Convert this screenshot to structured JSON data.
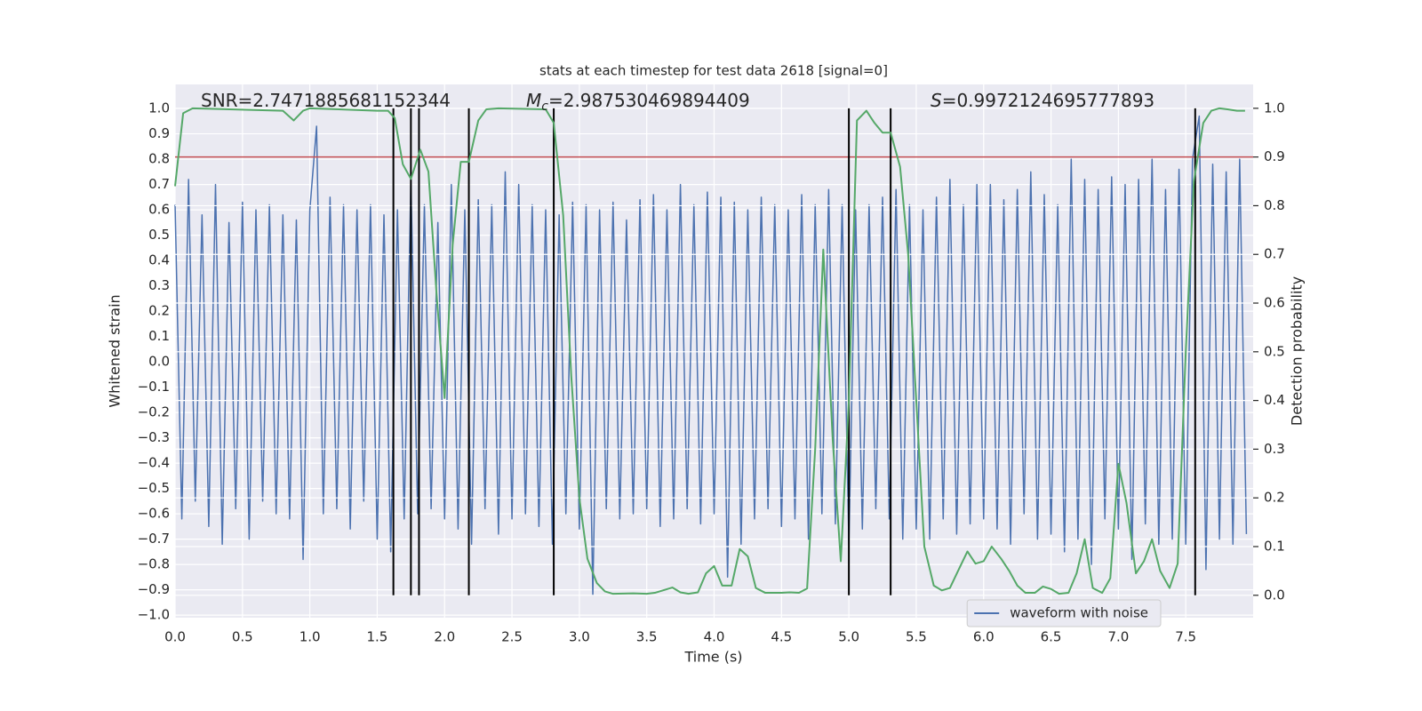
{
  "chart_data": {
    "type": "line",
    "title": "stats at each timestep for test data 2618 [signal=0]",
    "xlabel": "Time (s)",
    "ylabel": "Whitened strain",
    "y2label": "Detection probability",
    "annotations": [
      {
        "text": "SNR=2.7471885681152344"
      },
      {
        "symbol": "M",
        "subscript": "c",
        "text": "=2.987530469894409"
      },
      {
        "symbol": "S",
        "text": "=0.9972124695777893"
      }
    ],
    "xlim": [
      0,
      8.0
    ],
    "ylim": [
      -1.01,
      1.095
    ],
    "y2lim": [
      -0.046,
      1.049
    ],
    "xticks": [
      {
        "value": 0,
        "label": "0.0"
      },
      0.5,
      {
        "value": 1,
        "label": "1.0"
      },
      1.5,
      {
        "value": 2,
        "label": "2.0"
      },
      2.5,
      {
        "value": 3,
        "label": "3.0"
      },
      3.5,
      {
        "value": 4,
        "label": "4.0"
      },
      4.5,
      {
        "value": 5,
        "label": "5.0"
      },
      5.5,
      {
        "value": 6,
        "label": "6.0"
      },
      6.5,
      {
        "value": 7,
        "label": "7.0"
      },
      7.5
    ],
    "yticks": [
      {
        "value": -1,
        "label": "−1.0"
      },
      {
        "value": -0.9,
        "label": "−0.9"
      },
      {
        "value": -0.8,
        "label": "−0.8"
      },
      {
        "value": -0.7,
        "label": "−0.7"
      },
      {
        "value": -0.6,
        "label": "−0.6"
      },
      {
        "value": -0.5,
        "label": "−0.5"
      },
      {
        "value": -0.4,
        "label": "−0.4"
      },
      {
        "value": -0.3,
        "label": "−0.3"
      },
      {
        "value": -0.2,
        "label": "−0.2"
      },
      {
        "value": -0.1,
        "label": "−0.1"
      },
      {
        "value": 0,
        "label": "0.0"
      },
      0.1,
      0.2,
      0.3,
      0.4,
      0.5,
      0.6,
      0.7,
      0.8,
      0.9,
      {
        "value": 1,
        "label": "1.0"
      }
    ],
    "y2ticks": [
      {
        "value": 0,
        "label": "0.0"
      },
      0.1,
      0.2,
      0.3,
      0.4,
      0.5,
      0.6,
      0.7,
      0.8,
      0.9,
      {
        "value": 1,
        "label": "1.0"
      }
    ],
    "grid": true,
    "background": "#eaeaf2",
    "legend": "lower right",
    "hline": {
      "value": 0.9,
      "axis": "y2",
      "color": "#c44e52"
    },
    "vlines": {
      "x": [
        1.62,
        1.75,
        1.81,
        2.18,
        2.81,
        5.0,
        5.31,
        7.57
      ],
      "y2range": [
        0,
        1
      ],
      "color": "#000000"
    },
    "series": [
      {
        "name": "waveform with noise",
        "color": "#4c72b0",
        "x": [
          0,
          0.05,
          0.1,
          0.15,
          0.2,
          0.25,
          0.3,
          0.35,
          0.4,
          0.45,
          0.5,
          0.55,
          0.6,
          0.65,
          0.7,
          0.75,
          0.8,
          0.85,
          0.9,
          0.95,
          1,
          1.05,
          1.1,
          1.15,
          1.2,
          1.25,
          1.3,
          1.35,
          1.4,
          1.45,
          1.5,
          1.55,
          1.6,
          1.65,
          1.7,
          1.75,
          1.8,
          1.85,
          1.9,
          1.95,
          2,
          2.05,
          2.1,
          2.15,
          2.2,
          2.25,
          2.3,
          2.35,
          2.4,
          2.45,
          2.5,
          2.55,
          2.6,
          2.65,
          2.7,
          2.75,
          2.8,
          2.85,
          2.9,
          2.95,
          3,
          3.05,
          3.1,
          3.15,
          3.2,
          3.25,
          3.3,
          3.35,
          3.4,
          3.45,
          3.5,
          3.55,
          3.6,
          3.65,
          3.7,
          3.75,
          3.8,
          3.85,
          3.9,
          3.95,
          4,
          4.05,
          4.1,
          4.15,
          4.2,
          4.25,
          4.3,
          4.35,
          4.4,
          4.45,
          4.5,
          4.55,
          4.6,
          4.65,
          4.7,
          4.75,
          4.8,
          4.85,
          4.9,
          4.95,
          5,
          5.05,
          5.1,
          5.15,
          5.2,
          5.25,
          5.3,
          5.35,
          5.4,
          5.45,
          5.5,
          5.55,
          5.6,
          5.65,
          5.7,
          5.75,
          5.8,
          5.85,
          5.9,
          5.95,
          6,
          6.05,
          6.1,
          6.15,
          6.2,
          6.25,
          6.3,
          6.35,
          6.4,
          6.45,
          6.5,
          6.55,
          6.6,
          6.65,
          6.7,
          6.75,
          6.8,
          6.85,
          6.9,
          6.95,
          7,
          7.05,
          7.1,
          7.15,
          7.2,
          7.25,
          7.3,
          7.35,
          7.4,
          7.45,
          7.5,
          7.55,
          7.6,
          7.65,
          7.7,
          7.75,
          7.8,
          7.85,
          7.9,
          7.95
        ],
        "values": [
          0.62,
          -0.62,
          0.72,
          -0.55,
          0.58,
          -0.65,
          0.7,
          -0.72,
          0.55,
          -0.58,
          0.63,
          -0.7,
          0.6,
          -0.55,
          0.62,
          -0.6,
          0.58,
          -0.62,
          0.56,
          -0.78,
          0.6,
          0.93,
          -0.6,
          0.65,
          -0.58,
          0.62,
          -0.66,
          0.6,
          -0.55,
          0.62,
          -0.7,
          0.58,
          -0.75,
          0.6,
          -0.62,
          0.72,
          -0.6,
          0.62,
          -0.58,
          0.55,
          -0.62,
          0.7,
          -0.66,
          0.6,
          -0.72,
          0.64,
          -0.58,
          0.62,
          -0.68,
          0.75,
          -0.62,
          0.7,
          -0.6,
          0.62,
          -0.65,
          0.6,
          -0.72,
          0.58,
          -0.6,
          0.63,
          -0.66,
          0.62,
          -0.92,
          0.6,
          -0.58,
          0.63,
          -0.62,
          0.56,
          -0.6,
          0.64,
          -0.58,
          0.66,
          -0.65,
          0.6,
          -0.62,
          0.7,
          -0.58,
          0.62,
          -0.64,
          0.67,
          -0.6,
          0.65,
          -0.85,
          0.63,
          -0.72,
          0.6,
          -0.62,
          0.65,
          -0.58,
          0.62,
          -0.65,
          0.6,
          -0.62,
          0.66,
          -0.7,
          0.62,
          -0.6,
          0.68,
          -0.64,
          0.62,
          -0.72,
          0.6,
          -0.66,
          0.62,
          -0.58,
          0.65,
          -0.62,
          0.68,
          -0.7,
          0.62,
          -0.66,
          0.6,
          -0.7,
          0.65,
          -0.62,
          0.72,
          -0.68,
          0.62,
          -0.64,
          0.7,
          -0.62,
          0.7,
          -0.66,
          0.64,
          -0.72,
          0.68,
          -0.6,
          0.75,
          -0.7,
          0.66,
          -0.68,
          0.62,
          -0.75,
          0.8,
          -0.7,
          0.72,
          -0.8,
          0.68,
          -0.62,
          0.73,
          -0.66,
          0.7,
          -0.78,
          0.72,
          -0.64,
          0.8,
          -0.72,
          0.68,
          -0.7,
          0.76,
          -0.72,
          0.8,
          0.97,
          -0.82,
          0.78,
          -0.7,
          0.75,
          -0.72,
          0.8,
          -0.68
        ]
      },
      {
        "color": "#55a868",
        "axis": "y2",
        "x": [
          0,
          0.06,
          0.13,
          0.8,
          0.88,
          0.95,
          1.0,
          1.5,
          1.58,
          1.63,
          1.69,
          1.75,
          1.82,
          1.88,
          1.94,
          2.0,
          2.06,
          2.12,
          2.18,
          2.25,
          2.31,
          2.4,
          2.75,
          2.81,
          2.88,
          2.94,
          3.0,
          3.06,
          3.13,
          3.19,
          3.25,
          3.4,
          3.5,
          3.56,
          3.62,
          3.69,
          3.75,
          3.81,
          3.88,
          3.94,
          4.0,
          4.06,
          4.13,
          4.19,
          4.25,
          4.31,
          4.38,
          4.5,
          4.56,
          4.63,
          4.69,
          4.75,
          4.81,
          4.88,
          4.94,
          5.0,
          5.06,
          5.13,
          5.19,
          5.25,
          5.31,
          5.38,
          5.44,
          5.5,
          5.56,
          5.63,
          5.69,
          5.75,
          5.81,
          5.88,
          5.94,
          6.0,
          6.06,
          6.13,
          6.19,
          6.25,
          6.31,
          6.38,
          6.44,
          6.5,
          6.56,
          6.63,
          6.69,
          6.75,
          6.81,
          6.88,
          6.94,
          7.0,
          7.06,
          7.13,
          7.19,
          7.25,
          7.31,
          7.38,
          7.44,
          7.5,
          7.56,
          7.63,
          7.69,
          7.75,
          7.81,
          7.88,
          7.94
        ],
        "values": [
          0.84,
          0.99,
          1.0,
          0.995,
          0.975,
          0.995,
          1.0,
          0.995,
          0.995,
          0.98,
          0.885,
          0.855,
          0.915,
          0.87,
          0.62,
          0.405,
          0.72,
          0.89,
          0.89,
          0.975,
          0.998,
          1.0,
          0.998,
          0.97,
          0.78,
          0.45,
          0.2,
          0.075,
          0.025,
          0.008,
          0.003,
          0.004,
          0.003,
          0.005,
          0.01,
          0.016,
          0.006,
          0.003,
          0.006,
          0.045,
          0.06,
          0.02,
          0.02,
          0.095,
          0.08,
          0.015,
          0.005,
          0.005,
          0.006,
          0.005,
          0.014,
          0.3,
          0.71,
          0.32,
          0.07,
          0.4,
          0.975,
          0.995,
          0.97,
          0.95,
          0.95,
          0.88,
          0.7,
          0.4,
          0.1,
          0.02,
          0.01,
          0.015,
          0.05,
          0.09,
          0.065,
          0.07,
          0.1,
          0.075,
          0.05,
          0.02,
          0.005,
          0.005,
          0.018,
          0.013,
          0.003,
          0.005,
          0.045,
          0.115,
          0.015,
          0.005,
          0.035,
          0.27,
          0.19,
          0.045,
          0.07,
          0.115,
          0.05,
          0.015,
          0.065,
          0.5,
          0.85,
          0.97,
          0.995,
          1.0,
          0.998,
          0.995,
          0.995
        ]
      }
    ]
  }
}
